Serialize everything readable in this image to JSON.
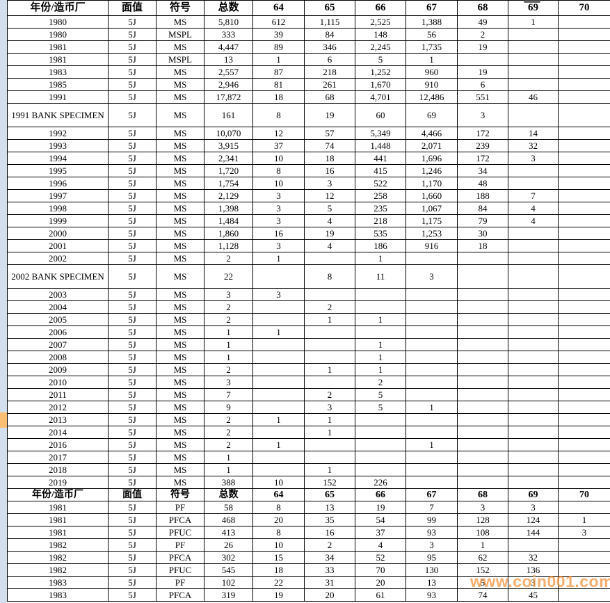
{
  "watermark": {
    "text": "www.coin001.com",
    "color": "#F59642"
  },
  "colors": {
    "grid_line": "#000000",
    "gutter_blue": "#D3DFED",
    "gutter_marker_orange": "#FABF72",
    "background": "#FFFFFF"
  },
  "table": {
    "columns": [
      "年份/造币厂",
      "面值",
      "符号",
      "总数",
      "64",
      "65",
      "66",
      "67",
      "68",
      "69",
      "70"
    ],
    "sections": [
      {
        "rows": [
          {
            "cells": [
              "1980",
              "5J",
              "MS",
              "5,810",
              "612",
              "1,115",
              "2,525",
              "1,388",
              "49",
              "1",
              ""
            ]
          },
          {
            "cells": [
              "1980",
              "5J",
              "MSPL",
              "333",
              "39",
              "84",
              "148",
              "56",
              "2",
              "",
              ""
            ]
          },
          {
            "cells": [
              "1981",
              "5J",
              "MS",
              "4,447",
              "89",
              "346",
              "2,245",
              "1,735",
              "19",
              "",
              ""
            ]
          },
          {
            "cells": [
              "1981",
              "5J",
              "MSPL",
              "13",
              "1",
              "6",
              "5",
              "1",
              "",
              "",
              ""
            ]
          },
          {
            "cells": [
              "1983",
              "5J",
              "MS",
              "2,557",
              "87",
              "218",
              "1,252",
              "960",
              "19",
              "",
              ""
            ]
          },
          {
            "cells": [
              "1985",
              "5J",
              "MS",
              "2,946",
              "81",
              "261",
              "1,670",
              "910",
              "6",
              "",
              ""
            ]
          },
          {
            "cells": [
              "1991",
              "5J",
              "MS",
              "17,872",
              "18",
              "68",
              "4,701",
              "12,486",
              "551",
              "46",
              ""
            ]
          },
          {
            "cells": [
              "1991 BANK SPECIMEN",
              "5J",
              "MS",
              "161",
              "8",
              "19",
              "60",
              "69",
              "3",
              "",
              ""
            ],
            "tall": true
          },
          {
            "cells": [
              "1992",
              "5J",
              "MS",
              "10,070",
              "12",
              "57",
              "5,349",
              "4,466",
              "172",
              "14",
              ""
            ]
          },
          {
            "cells": [
              "1993",
              "5J",
              "MS",
              "3,915",
              "37",
              "74",
              "1,448",
              "2,071",
              "239",
              "32",
              ""
            ]
          },
          {
            "cells": [
              "1994",
              "5J",
              "MS",
              "2,341",
              "10",
              "18",
              "441",
              "1,696",
              "172",
              "3",
              ""
            ]
          },
          {
            "cells": [
              "1995",
              "5J",
              "MS",
              "1,720",
              "8",
              "16",
              "415",
              "1,246",
              "34",
              "",
              ""
            ]
          },
          {
            "cells": [
              "1996",
              "5J",
              "MS",
              "1,754",
              "10",
              "3",
              "522",
              "1,170",
              "48",
              "",
              ""
            ]
          },
          {
            "cells": [
              "1997",
              "5J",
              "MS",
              "2,129",
              "3",
              "12",
              "258",
              "1,660",
              "188",
              "7",
              ""
            ]
          },
          {
            "cells": [
              "1998",
              "5J",
              "MS",
              "1,398",
              "3",
              "5",
              "235",
              "1,067",
              "84",
              "4",
              ""
            ]
          },
          {
            "cells": [
              "1999",
              "5J",
              "MS",
              "1,484",
              "3",
              "4",
              "218",
              "1,175",
              "79",
              "4",
              ""
            ]
          },
          {
            "cells": [
              "2000",
              "5J",
              "MS",
              "1,860",
              "16",
              "19",
              "535",
              "1,253",
              "30",
              "",
              ""
            ]
          },
          {
            "cells": [
              "2001",
              "5J",
              "MS",
              "1,128",
              "3",
              "4",
              "186",
              "916",
              "18",
              "",
              ""
            ]
          },
          {
            "cells": [
              "2002",
              "5J",
              "MS",
              "2",
              "1",
              "",
              "1",
              "",
              "",
              "",
              ""
            ]
          },
          {
            "cells": [
              "2002 BANK SPECIMEN",
              "5J",
              "MS",
              "22",
              "",
              "8",
              "11",
              "3",
              "",
              "",
              ""
            ],
            "tall": true
          },
          {
            "cells": [
              "2003",
              "5J",
              "MS",
              "3",
              "3",
              "",
              "",
              "",
              "",
              "",
              ""
            ]
          },
          {
            "cells": [
              "2004",
              "5J",
              "MS",
              "2",
              "",
              "2",
              "",
              "",
              "",
              "",
              ""
            ]
          },
          {
            "cells": [
              "2005",
              "5J",
              "MS",
              "2",
              "",
              "1",
              "1",
              "",
              "",
              "",
              ""
            ]
          },
          {
            "cells": [
              "2006",
              "5J",
              "MS",
              "1",
              "1",
              "",
              "",
              "",
              "",
              "",
              ""
            ]
          },
          {
            "cells": [
              "2007",
              "5J",
              "MS",
              "1",
              "",
              "",
              "1",
              "",
              "",
              "",
              ""
            ]
          },
          {
            "cells": [
              "2008",
              "5J",
              "MS",
              "1",
              "",
              "",
              "1",
              "",
              "",
              "",
              ""
            ]
          },
          {
            "cells": [
              "2009",
              "5J",
              "MS",
              "2",
              "",
              "1",
              "1",
              "",
              "",
              "",
              ""
            ]
          },
          {
            "cells": [
              "2010",
              "5J",
              "MS",
              "3",
              "",
              "",
              "2",
              "",
              "",
              "",
              ""
            ]
          },
          {
            "cells": [
              "2011",
              "5J",
              "MS",
              "7",
              "",
              "2",
              "5",
              "",
              "",
              "",
              ""
            ]
          },
          {
            "cells": [
              "2012",
              "5J",
              "MS",
              "9",
              "",
              "3",
              "5",
              "1",
              "",
              "",
              ""
            ]
          },
          {
            "cells": [
              "2013",
              "5J",
              "MS",
              "2",
              "1",
              "1",
              "",
              "",
              "",
              "",
              ""
            ]
          },
          {
            "cells": [
              "2014",
              "5J",
              "MS",
              "2",
              "",
              "1",
              "",
              "",
              "",
              "",
              ""
            ]
          },
          {
            "cells": [
              "2016",
              "5J",
              "MS",
              "2",
              "1",
              "",
              "",
              "1",
              "",
              "",
              ""
            ]
          },
          {
            "cells": [
              "2017",
              "5J",
              "MS",
              "1",
              "",
              "",
              "",
              "",
              "",
              "",
              ""
            ]
          },
          {
            "cells": [
              "2018",
              "5J",
              "MS",
              "1",
              "",
              "1",
              "",
              "",
              "",
              "",
              ""
            ]
          },
          {
            "cells": [
              "2019",
              "5J",
              "MS",
              "388",
              "10",
              "152",
              "226",
              "",
              "",
              "",
              ""
            ]
          }
        ]
      },
      {
        "rows": [
          {
            "cells": [
              "1981",
              "5J",
              "PF",
              "58",
              "8",
              "13",
              "19",
              "7",
              "3",
              "3",
              ""
            ]
          },
          {
            "cells": [
              "1981",
              "5J",
              "PFCA",
              "468",
              "20",
              "35",
              "54",
              "99",
              "128",
              "124",
              "1"
            ]
          },
          {
            "cells": [
              "1981",
              "5J",
              "PFUC",
              "413",
              "8",
              "16",
              "37",
              "93",
              "108",
              "144",
              "3"
            ]
          },
          {
            "cells": [
              "1982",
              "5J",
              "PF",
              "26",
              "10",
              "2",
              "4",
              "3",
              "1",
              "",
              ""
            ]
          },
          {
            "cells": [
              "1982",
              "5J",
              "PFCA",
              "302",
              "15",
              "34",
              "52",
              "95",
              "62",
              "32",
              ""
            ]
          },
          {
            "cells": [
              "1982",
              "5J",
              "PFUC",
              "545",
              "18",
              "33",
              "70",
              "130",
              "152",
              "136",
              ""
            ]
          },
          {
            "cells": [
              "1983",
              "5J",
              "PF",
              "102",
              "22",
              "31",
              "20",
              "13",
              "5",
              "3",
              ""
            ]
          },
          {
            "cells": [
              "1983",
              "5J",
              "PFCA",
              "319",
              "19",
              "20",
              "61",
              "93",
              "74",
              "45",
              ""
            ]
          }
        ]
      }
    ]
  }
}
